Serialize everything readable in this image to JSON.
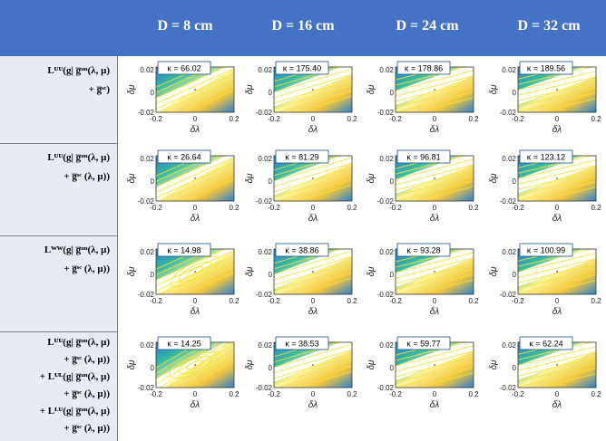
{
  "headers": [
    "",
    "D = 8 cm",
    "D = 16 cm",
    "D = 24 cm",
    "D = 32 cm"
  ],
  "rows": [
    {
      "label_lines": [
        "Lᵁᵁ(g| g̅ᵘⁿ(λ, μ)",
        "+ g̅ˢᶜ)"
      ],
      "kappas": [
        "κ = 66.02",
        "κ = 175.40",
        "κ = 178.86",
        "κ = 189.56"
      ]
    },
    {
      "label_lines": [
        "Lᵁᵁ(g| g̅ᵘⁿ(λ, μ)",
        "+ g̅ˢᶜ (λ, μ))"
      ],
      "kappas": [
        "κ = 26.64",
        "κ = 81.29",
        "κ = 96.81",
        "κ = 123.12"
      ]
    },
    {
      "label_lines": [
        "Lᵂᵂ(g| g̅ᵘⁿ(λ, μ)",
        "+ g̅ˢᶜ (λ, μ))"
      ],
      "kappas": [
        "κ = 14.98",
        "κ = 38.86",
        "κ = 93.28",
        "κ = 100.99"
      ]
    },
    {
      "label_lines": [
        "Lᵁᵁ(g| g̅ᵘⁿ(λ, μ)",
        "+ g̅ˢᶜ (λ, μ))",
        "+ Lᵁᴸ(g| g̅ᵘⁿ(λ, μ)",
        "+ g̅ˢᶜ (λ, μ))",
        "+ Lᴸᵁ(g| g̅ᵘⁿ(λ, μ)",
        "+ g̅ˢᶜ (λ, μ))"
      ],
      "kappas": [
        "κ = 14.25",
        "κ = 38.53",
        "κ = 59.77",
        "κ = 62.24"
      ]
    }
  ],
  "plot": {
    "x_ticks": [
      "-0.2",
      "0",
      "0.2"
    ],
    "y_ticks": [
      "0.02",
      "0",
      "-0.02"
    ],
    "xlabel": "δλ",
    "ylabel": "δμ"
  },
  "colors": {
    "header_bg": "#4472c4",
    "label_bg": "#e8ebf4",
    "contour": "#f4e43a",
    "map_low": "#fbf59b",
    "map_high": "#2a7fd1"
  }
}
